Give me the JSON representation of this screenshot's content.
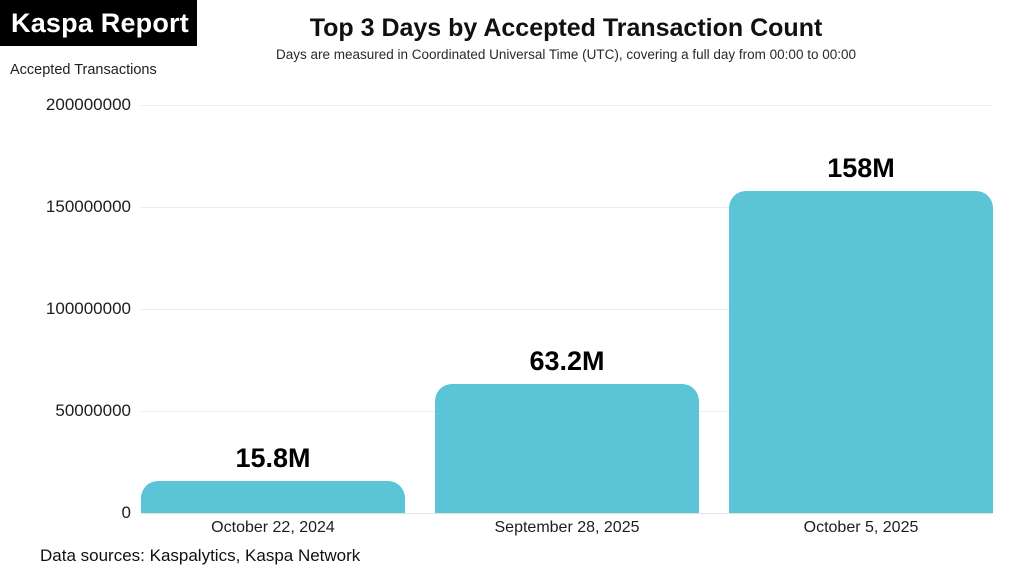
{
  "brand": {
    "logo_text": "Kaspa Report",
    "logo_bg": "#000000",
    "logo_fg": "#ffffff"
  },
  "header": {
    "title": "Top 3 Days by Accepted Transaction Count",
    "subtitle": "Days are measured in Coordinated Universal Time (UTC), covering a full day from 00:00 to 00:00"
  },
  "footer": {
    "data_sources": "Data sources: Kaspalytics, Kaspa Network"
  },
  "chart_data": {
    "type": "bar",
    "title": "Top 3 Days by Accepted Transaction Count",
    "subtitle": "Days are measured in Coordinated Universal Time (UTC), covering a full day from 00:00 to 00:00",
    "ylabel": "Accepted Transactions",
    "xlabel": "",
    "categories": [
      "October 22, 2024",
      "September 28, 2025",
      "October 5, 2025"
    ],
    "values": [
      15800000,
      63200000,
      158000000
    ],
    "value_labels": [
      "15.8M",
      "63.2M",
      "158M"
    ],
    "yticks": [
      0,
      50000000,
      100000000,
      150000000,
      200000000
    ],
    "ytick_labels": [
      "0",
      "50000000",
      "100000000",
      "150000000",
      "200000000"
    ],
    "ylim": [
      0,
      200000000
    ],
    "grid": true,
    "legend": false,
    "bar_color": "#5bc4d6",
    "grid_color": "#ebebeb",
    "baseline_color": "#e3e3e3",
    "text_color": "#1a1a1a"
  }
}
